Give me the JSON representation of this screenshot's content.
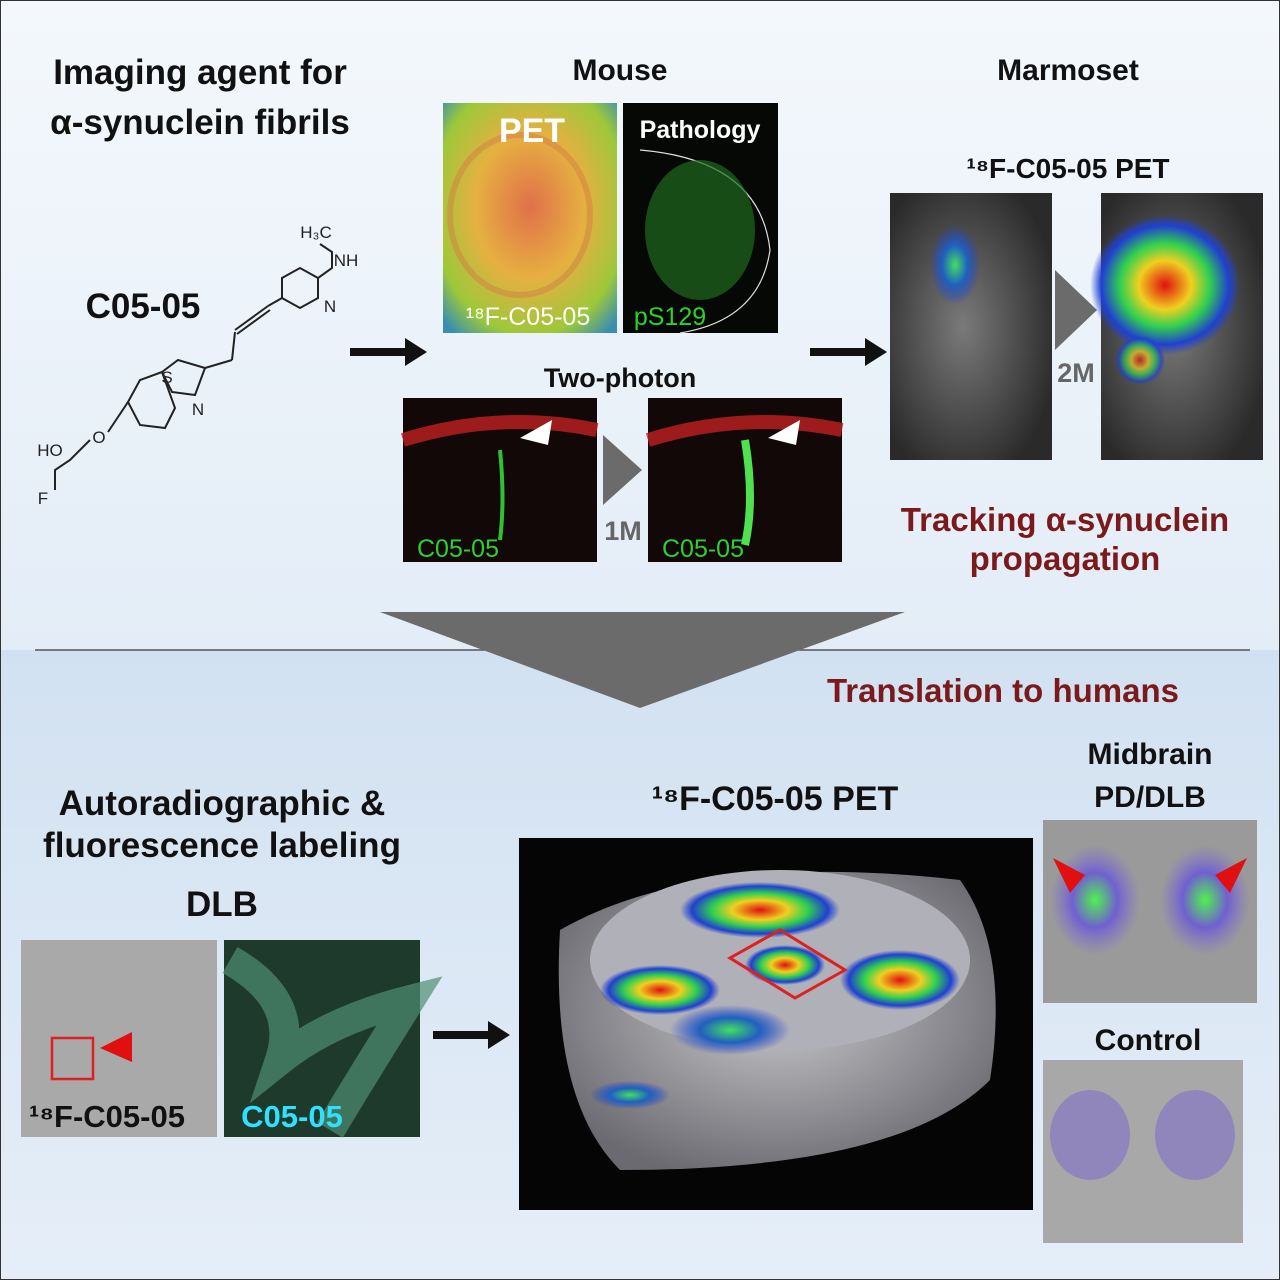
{
  "title_lines": [
    "Imaging agent for",
    "α-synuclein fibrils"
  ],
  "compound": {
    "name": "C05-05",
    "atoms": [
      "H₃C",
      "NH",
      "N",
      "S",
      "N",
      "O",
      "HO",
      "F"
    ]
  },
  "mouse": {
    "title": "Mouse",
    "pet_label": "PET",
    "pathology_label": "Pathology",
    "pet_caption": "¹⁸F-C05-05",
    "pathology_caption": "pS129"
  },
  "two_photon": {
    "title": "Two-photon",
    "left_caption": "C05-05",
    "interval": "1M",
    "right_caption": "C05-05"
  },
  "marmoset": {
    "title": "Marmoset",
    "subtitle": "¹⁸F-C05-05 PET",
    "interval": "2M",
    "tracking_lines": [
      "Tracking α-synuclein",
      "propagation"
    ]
  },
  "translation": "Translation to humans",
  "labeling": {
    "title_lines": [
      "Autoradiographic &",
      "fluorescence labeling"
    ],
    "subtitle": "DLB",
    "left_caption": "¹⁸F-C05-05",
    "right_caption": "C05-05"
  },
  "human_pet": {
    "title": "¹⁸F-C05-05 PET"
  },
  "midbrain": {
    "title_lines": [
      "Midbrain",
      "PD/DLB"
    ],
    "control": "Control"
  }
}
